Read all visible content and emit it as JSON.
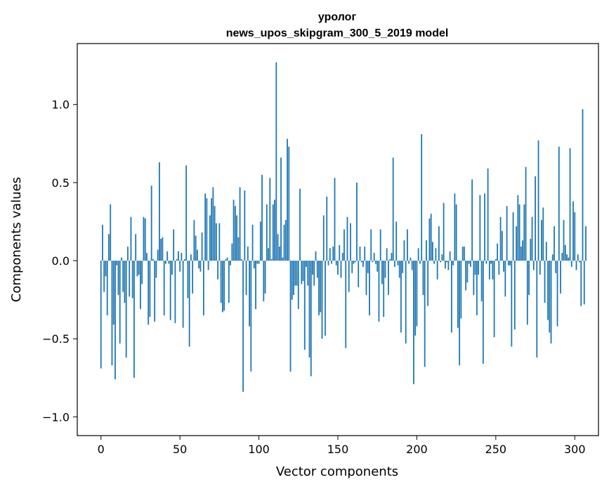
{
  "chart_data": {
    "type": "bar",
    "title_line1": "уролог",
    "title_line2": "news_upos_skipgram_300_5_2019 model",
    "xlabel": "Vector components",
    "ylabel": "Components values",
    "xlim": [
      -15,
      315
    ],
    "ylim": [
      -1.12,
      1.39
    ],
    "xticks": [
      0,
      50,
      100,
      150,
      200,
      250,
      300
    ],
    "xtick_labels": [
      "0",
      "50",
      "100",
      "150",
      "200",
      "250",
      "300"
    ],
    "yticks": [
      -1.0,
      -0.5,
      0.0,
      0.5,
      1.0
    ],
    "ytick_labels": [
      "−1.0",
      "−0.5",
      "0.0",
      "0.5",
      "1.0"
    ],
    "bar_color": "#1f77b4",
    "grid": false,
    "values": [
      -0.69,
      0.23,
      -0.2,
      -0.1,
      -0.35,
      0.17,
      0.36,
      -0.67,
      -0.41,
      -0.76,
      -0.03,
      -0.22,
      -0.53,
      0.02,
      -0.2,
      -0.27,
      -0.62,
      0.09,
      -0.23,
      0.28,
      -0.24,
      -0.75,
      0.17,
      -0.1,
      -0.09,
      -0.31,
      -0.15,
      0.28,
      0.27,
      0.05,
      -0.41,
      -0.36,
      0.48,
      0.01,
      -0.39,
      -0.11,
      0.07,
      0.63,
      0.14,
      0.15,
      -0.35,
      -0.02,
      0.06,
      -0.02,
      -0.38,
      -0.09,
      0.2,
      -0.4,
      0.01,
      0.06,
      -0.07,
      0.05,
      -0.43,
      0.01,
      0.61,
      -0.24,
      -0.55,
      0.04,
      -0.21,
      0.26,
      0.16,
      0.07,
      -0.05,
      -0.07,
      0.18,
      -0.35,
      0.43,
      0.4,
      -0.06,
      0.29,
      0.4,
      0.47,
      0.35,
      0.24,
      -0.12,
      0.24,
      -0.27,
      -0.33,
      -0.32,
      0.01,
      0.02,
      -0.27,
      -0.03,
      0.11,
      0.39,
      0.35,
      0.29,
      0.15,
      0.47,
      0.01,
      -0.84,
      0.45,
      -0.22,
      0.09,
      -0.42,
      -0.71,
      0.23,
      -0.05,
      -0.31,
      -0.02,
      -0.02,
      0.25,
      0.55,
      -0.26,
      -0.21,
      0.36,
      0.08,
      0.53,
      0.01,
      0.36,
      0.39,
      1.27,
      0.17,
      0.09,
      0.66,
      0.02,
      0.23,
      0.26,
      0.78,
      0.73,
      -0.71,
      -0.25,
      -0.22,
      -0.16,
      -0.16,
      -0.31,
      0.46,
      -0.15,
      -0.13,
      -0.57,
      -0.04,
      -0.16,
      -0.62,
      -0.74,
      -0.09,
      -0.16,
      0.06,
      -0.11,
      -0.35,
      -0.33,
      -0.5,
      0.29,
      -0.48,
      0.41,
      -0.03,
      0.08,
      -0.02,
      0.09,
      0.53,
      -0.03,
      -0.09,
      0.1,
      -0.11,
      0.05,
      0.2,
      -0.56,
      0.28,
      -0.2,
      0.24,
      -0.08,
      -0.02,
      -0.01,
      0.5,
      -0.17,
      0.09,
      -0.01,
      -0.04,
      0.09,
      -0.22,
      -0.08,
      -0.35,
      0.2,
      -0.01,
      0.05,
      -0.02,
      -0.07,
      -0.39,
      0.2,
      -0.15,
      -0.36,
      -0.11,
      0.08,
      -0.22,
      0.01,
      0.05,
      0.66,
      -0.04,
      0.25,
      -0.03,
      -0.11,
      -0.46,
      -0.08,
      0.13,
      -0.53,
      0.2,
      -0.02,
      0.02,
      -0.06,
      -0.79,
      -0.48,
      -0.42,
      0.08,
      -0.02,
      0.81,
      -0.22,
      -0.68,
      0.13,
      -0.29,
      0.27,
      0.3,
      0.12,
      -0.02,
      0.08,
      -0.12,
      0.22,
      -0.01,
      0.04,
      0.37,
      -0.05,
      -0.01,
      -0.06,
      0.06,
      -0.46,
      -0.03,
      0.43,
      0.36,
      -0.43,
      -0.67,
      -0.37,
      0.09,
      0.09,
      -0.19,
      -0.14,
      -0.02,
      -0.04,
      0.52,
      -0.22,
      -0.09,
      -0.35,
      -0.09,
      0.42,
      -0.26,
      -0.66,
      0.43,
      -0.02,
      0.59,
      -0.12,
      -0.02,
      -0.12,
      -0.49,
      0.01,
      0.11,
      -0.09,
      0.28,
      0.19,
      -0.07,
      -0.23,
      0.35,
      -0.03,
      -0.03,
      -0.55,
      0.31,
      -0.44,
      0.22,
      0.42,
      0.36,
      0.09,
      0.13,
      0.36,
      0.6,
      -0.41,
      -0.22,
      0.14,
      0.28,
      -0.06,
      0.54,
      -0.62,
      0.77,
      -0.09,
      0.26,
      0.34,
      -0.27,
      0.12,
      -0.38,
      -0.46,
      -0.53,
      0.04,
      0.22,
      -0.08,
      -0.42,
      0.73,
      -0.21,
      0.05,
      0.26,
      0.1,
      0.04,
      0.02,
      0.72,
      -0.04,
      0.38,
      0.31,
      -0.06,
      0.04,
      -0.01,
      -0.29,
      0.97,
      -0.28,
      0.22
    ]
  }
}
